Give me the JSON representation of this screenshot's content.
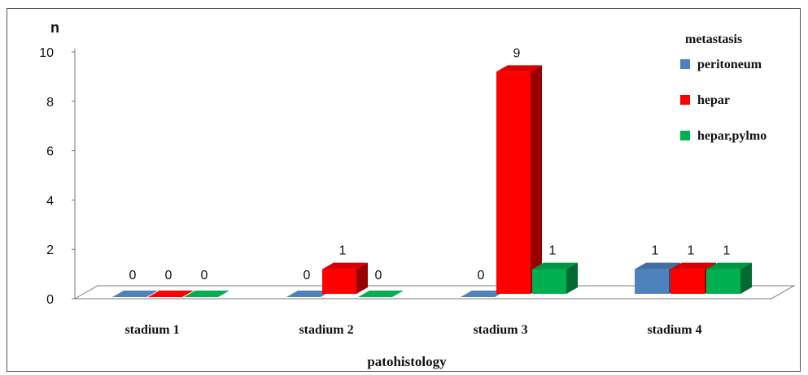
{
  "chart_data": {
    "type": "bar",
    "ylabel": "n",
    "xlabel": "patohistology",
    "categories": [
      "stadium 1",
      "stadium 2",
      "stadium 3",
      "stadium 4"
    ],
    "ylim": [
      0,
      10
    ],
    "yticks": [
      0,
      2,
      4,
      6,
      8,
      10
    ],
    "grid": false,
    "legend_title": "metastasis",
    "legend_position": "top-right",
    "series": [
      {
        "name": "peritoneum",
        "color": "#4f81bd",
        "values": [
          0,
          0,
          0,
          1
        ]
      },
      {
        "name": "hepar",
        "color": "#ff0000",
        "values": [
          0,
          1,
          9,
          1
        ]
      },
      {
        "name": "hepar,pylmo",
        "color": "#00b050",
        "values": [
          0,
          0,
          1,
          1
        ]
      }
    ]
  }
}
